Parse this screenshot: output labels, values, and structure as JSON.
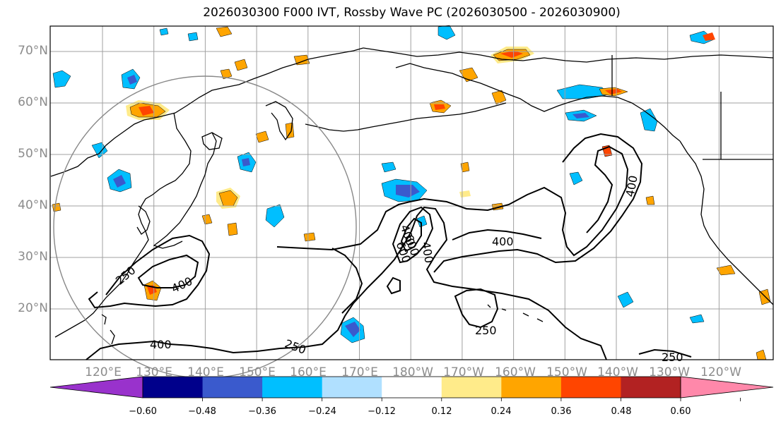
{
  "title": "2026030300 F000 IVT, Rossby Wave PC (2026030500 - 2026030900)",
  "latitude_labels": [
    "70°N",
    "60°N",
    "50°N",
    "40°N",
    "30°N",
    "20°N"
  ],
  "longitude_labels": [
    "120°E",
    "130°E",
    "140°E",
    "150°E",
    "160°E",
    "170°E",
    "180°W",
    "170°W",
    "160°W",
    "150°W",
    "140°W",
    "130°W",
    "120°W"
  ],
  "colorbar": {
    "tick_labels": [
      "−0.60",
      "−0.48",
      "−0.36",
      "−0.24",
      "−0.12",
      "0.12",
      "0.24",
      "0.36",
      "0.48",
      "0.60"
    ],
    "colors": [
      "#9932cc",
      "#00008b",
      "#3a5acd",
      "#00bfff",
      "#b0e0ff",
      "#ffffff",
      "#ffeb8a",
      "#ffa500",
      "#ff4500",
      "#b22222",
      "#ff88aa"
    ]
  },
  "contour_labels": [
    "250",
    "400",
    "400",
    "400",
    "400",
    "250",
    "250",
    "400",
    "250",
    "400",
    "600",
    "600"
  ],
  "colors": {
    "contour": "#000000",
    "coastline": "#000000",
    "grid": "#a0a0a0",
    "circle": "#888888"
  }
}
